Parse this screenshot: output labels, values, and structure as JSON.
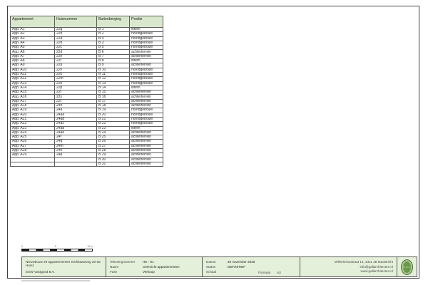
{
  "table": {
    "columns": [
      "Appartement",
      "Huisnummer",
      "Buitenberging",
      "Positie"
    ],
    "rows": [
      [
        "App. A1",
        "22g",
        "B 1",
        "intern"
      ],
      [
        "App. A2",
        "22h",
        "B 2",
        "hoofdgebouw"
      ],
      [
        "App. A3",
        "22a",
        "B 4",
        "hoofdgebouw"
      ],
      [
        "App. A4",
        "22b",
        "B 3",
        "hoofdgebouw"
      ],
      [
        "App. A5",
        "22c",
        "B 5",
        "hoofdgebouw"
      ],
      [
        "App. A6",
        "22d",
        "B 6",
        "achterterrein"
      ],
      [
        "App. A7",
        "22e",
        "B 7",
        "achterterrein"
      ],
      [
        "App. A8",
        "22f",
        "B 8",
        "intern"
      ],
      [
        "App. A9",
        "22u",
        "B 9",
        "achterterrein"
      ],
      [
        "App. A10",
        "22v",
        "B 10",
        "hoofdgebouw"
      ],
      [
        "App. A11",
        "22k",
        "B 11",
        "hoofdgebouw"
      ],
      [
        "App. A12",
        "22m",
        "B 12",
        "hoofdgebouw"
      ],
      [
        "App. A13",
        "22n",
        "B 13",
        "hoofdgebouw"
      ],
      [
        "App. A14",
        "22p",
        "B 14",
        "intern"
      ],
      [
        "App. A15",
        "22r",
        "B 15",
        "achterterrein"
      ],
      [
        "App. A16",
        "22s",
        "B 16",
        "achterterrein"
      ],
      [
        "App. A17",
        "22t",
        "B 17",
        "achterterrein"
      ],
      [
        "App. A18",
        "24h",
        "B 18",
        "achterterrein"
      ],
      [
        "App. A19",
        "24a",
        "B 19",
        "hoofdgebouw"
      ],
      [
        "App. A20",
        "24aa",
        "B 20",
        "hoofdgebouw"
      ],
      [
        "App. A21",
        "24ab",
        "B 21",
        "hoofdgebouw"
      ],
      [
        "App. A22",
        "24ac",
        "B 22",
        "hoofdgebouw"
      ],
      [
        "App. A23",
        "24ad",
        "B 23",
        "intern"
      ],
      [
        "App. A24",
        "24ae",
        "B 24",
        "achterterrein"
      ],
      [
        "App. A25",
        "24f",
        "B 25",
        "achterterrein"
      ],
      [
        "App. A26",
        "24g",
        "B 26",
        "achterterrein"
      ],
      [
        "App. A27",
        "24m",
        "B 27",
        "achterterrein"
      ],
      [
        "App. A28",
        "24n",
        "B 28",
        "achterterrein"
      ],
      [
        "App. A29",
        "24p",
        "B 29",
        "achterterrein"
      ],
      [
        "",
        "",
        "B 30",
        "achterterrein"
      ],
      [
        "",
        "",
        "B 31",
        "achterterrein"
      ]
    ]
  },
  "scalebar": {
    "labels": [
      "0",
      "5",
      "10 m"
    ]
  },
  "titleblock": {
    "project": {
      "line1": "Nieuwbouw 29 appartementen Kerkbaanweg 20-26 Horst",
      "line2": "EGW Vastgoed B.V."
    },
    "drawing": {
      "rows": [
        {
          "label": "Tekeningnummer",
          "value": "HK - 01"
        },
        {
          "label": "Naam",
          "value": "Overzicht appartementen"
        },
        {
          "label": "Fase",
          "value": "Verkoop"
        }
      ]
    },
    "meta": {
      "rows": [
        {
          "label": "Datum",
          "value": "20 november 2025"
        },
        {
          "label": "Status",
          "value": "DEFINITIEF"
        },
        {
          "label": "Schaal",
          "value": ""
        }
      ],
      "formaat_label": "Formaat",
      "formaat_value": "A3"
    },
    "contact": {
      "address": "Wilhelminastraat 13, 4311 JB Maastricht",
      "email": "info@gallarchitecten.nl",
      "website": "www.gallarchitecten.nl"
    },
    "logo_text": "S.J.L."
  },
  "colors": {
    "header_green": "#d9e8cc",
    "block_green": "#e4f0da",
    "logo_green": "#6a984a",
    "line": "#565656"
  }
}
